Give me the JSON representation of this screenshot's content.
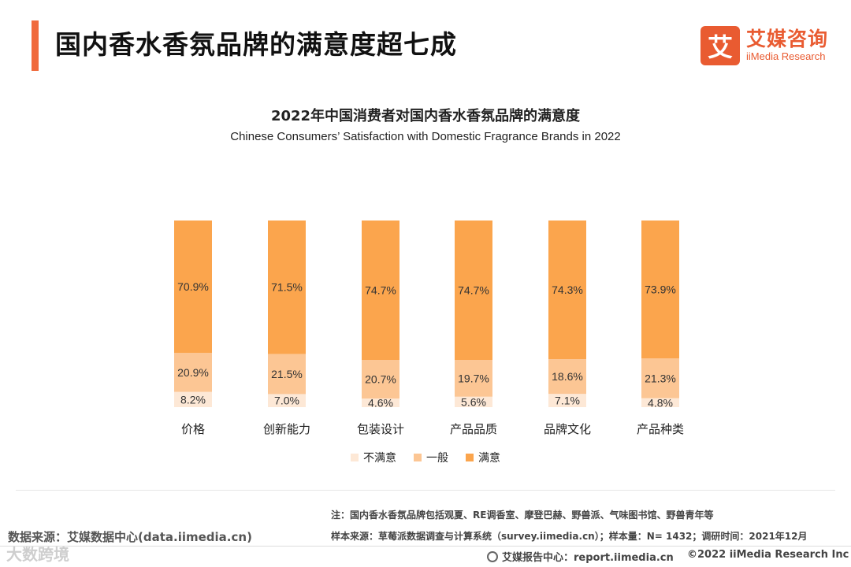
{
  "header": {
    "title": "国内香水香氛品牌的满意度超七成",
    "logo_mark": "艾",
    "logo_cn": "艾媒咨询",
    "logo_en": "iiMedia Research"
  },
  "chart_data": {
    "type": "bar",
    "stacked": true,
    "title": "2022年中国消费者对国内香水香氛品牌的满意度",
    "subtitle": "Chinese Consumers’ Satisfaction with Domestic Fragrance Brands in 2022",
    "categories": [
      "价格",
      "创新能力",
      "包装设计",
      "产品品质",
      "品牌文化",
      "产品种类"
    ],
    "series": [
      {
        "name": "不满意",
        "color": "#fde8d6",
        "values": [
          8.2,
          7.0,
          4.6,
          5.6,
          7.1,
          4.8
        ],
        "labels": [
          "8.2%",
          "7.0%",
          "4.6%",
          "5.6%",
          "7.1%",
          "4.8%"
        ]
      },
      {
        "name": "一般",
        "color": "#fcc694",
        "values": [
          20.9,
          21.5,
          20.7,
          19.7,
          18.6,
          21.3
        ],
        "labels": [
          "20.9%",
          "21.5%",
          "20.7%",
          "19.7%",
          "18.6%",
          "21.3%"
        ]
      },
      {
        "name": "满意",
        "color": "#fba54d",
        "values": [
          70.9,
          71.5,
          74.7,
          74.7,
          74.3,
          73.9
        ],
        "labels": [
          "70.9%",
          "71.5%",
          "74.7%",
          "74.7%",
          "74.3%",
          "73.9%"
        ]
      }
    ],
    "ylim": [
      0,
      100
    ],
    "legend_position": "bottom",
    "grid": false
  },
  "footer": {
    "note": "注：国内香水香氛品牌包括观夏、RE调香室、摩登巴赫、野兽派、气味图书馆、野兽青年等",
    "sample": "样本来源：草莓派数据调查与计算系统（survey.iimedia.cn）；样本量：N= 1432；调研时间：2021年12月",
    "source": "数据来源：艾媒数据中心(data.iimedia.cn)",
    "report": "艾媒报告中心：report.iimedia.cn",
    "copyright": "©2022  iiMedia Research  Inc",
    "watermark": "大数跨境"
  }
}
